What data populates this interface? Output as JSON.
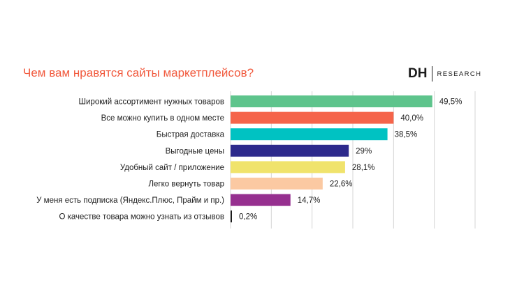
{
  "title": "Чем вам нравятся сайты маркетплейсов?",
  "logo": {
    "mark": "DH",
    "word": "RESEARCH"
  },
  "chart_data": {
    "type": "bar",
    "orientation": "horizontal",
    "title": "Чем вам нравятся сайты маркетплейсов?",
    "categories": [
      "Широкий ассортимент нужных товаров",
      "Все можно купить в одном месте",
      "Быстрая доставка",
      "Выгодные цены",
      "Удобный сайт / приложение",
      "Легко вернуть товар",
      "У меня есть подписка (Яндекс.Плюс, Прайм и пр.)",
      "О качестве товара можно узнать из отзывов"
    ],
    "values": [
      49.5,
      40.0,
      38.5,
      29,
      28.1,
      22.6,
      14.7,
      0.2
    ],
    "value_labels": [
      "49,5%",
      "40,0%",
      "38,5%",
      "29%",
      "28,1%",
      "22,6%",
      "14,7%",
      "0,2%"
    ],
    "colors": [
      "#5ec48c",
      "#f5644a",
      "#00c2c2",
      "#2d2a8c",
      "#f0e36c",
      "#fbc9a2",
      "#96308f",
      "#1b1b1b"
    ],
    "xlim": [
      0,
      60
    ],
    "grid": true,
    "gridline_values": [
      0,
      10,
      20,
      30,
      40,
      50,
      60
    ]
  }
}
